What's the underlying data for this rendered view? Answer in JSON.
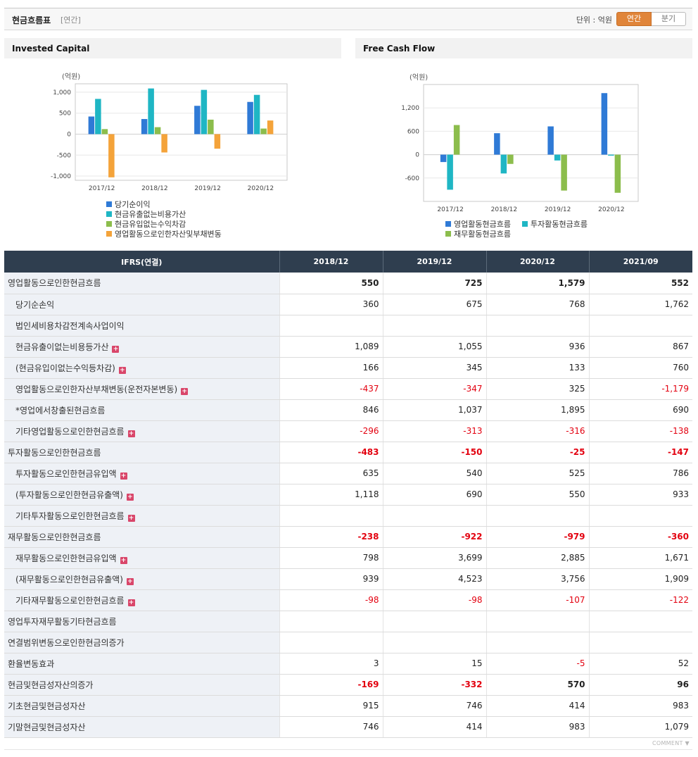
{
  "header": {
    "title": "현금흐름표",
    "subtitle": "[연간]",
    "unit_label": "단위 : 억원",
    "toggle_annual": "연간",
    "toggle_quarter": "분기"
  },
  "panels": {
    "left_title": "Invested Capital",
    "right_title": "Free Cash Flow"
  },
  "colors": {
    "blue": "#2f7ad6",
    "teal": "#1fb6c4",
    "green": "#8cbd4c",
    "orange": "#f4a33a",
    "negative": "#e3000f",
    "header_bg": "#2f3e4f"
  },
  "chart_data": [
    {
      "type": "bar",
      "title": "Invested Capital",
      "ylabel": "(억원)",
      "categories": [
        "2017/12",
        "2018/12",
        "2019/12",
        "2020/12"
      ],
      "ylim": [
        -1100,
        1200
      ],
      "yticks": [
        1000,
        500,
        0,
        -500,
        -1000
      ],
      "ytick_labels": [
        "1,000",
        "500",
        "0",
        "-500",
        "-1,000"
      ],
      "grid": true,
      "legend_position": "bottom",
      "series": [
        {
          "name": "당기순이익",
          "color": "#2f7ad6",
          "values": [
            420,
            360,
            675,
            768
          ]
        },
        {
          "name": "현금유출없는비용가산",
          "color": "#1fb6c4",
          "values": [
            840,
            1089,
            1055,
            936
          ]
        },
        {
          "name": "현금유입없는수익차감",
          "color": "#8cbd4c",
          "values": [
            120,
            166,
            345,
            133
          ]
        },
        {
          "name": "영업활동으로인한자산및부채변동",
          "color": "#f4a33a",
          "values": [
            -1030,
            -437,
            -347,
            325
          ]
        }
      ]
    },
    {
      "type": "bar",
      "title": "Free Cash Flow",
      "ylabel": "(억원)",
      "categories": [
        "2017/12",
        "2018/12",
        "2019/12",
        "2020/12"
      ],
      "ylim": [
        -1200,
        1800
      ],
      "yticks": [
        1200,
        600,
        0,
        -600
      ],
      "ytick_labels": [
        "1,200",
        "600",
        "0",
        "-600"
      ],
      "grid": true,
      "legend_position": "bottom",
      "series": [
        {
          "name": "영업활동현금흐름",
          "color": "#2f7ad6",
          "values": [
            -190,
            550,
            725,
            1579
          ]
        },
        {
          "name": "투자활동현금흐름",
          "color": "#1fb6c4",
          "values": [
            -900,
            -483,
            -150,
            -25
          ]
        },
        {
          "name": "재무활동현금흐름",
          "color": "#8cbd4c",
          "values": [
            760,
            -238,
            -922,
            -979
          ]
        }
      ]
    }
  ],
  "table": {
    "header_label": "IFRS(연결)",
    "columns": [
      "2018/12",
      "2019/12",
      "2020/12",
      "2021/09"
    ],
    "rows": [
      {
        "label": "영업활동으로인한현금흐름",
        "level": 0,
        "bold": true,
        "plus": false,
        "values": [
          "550",
          "725",
          "1,579",
          "552"
        ]
      },
      {
        "label": "당기순손익",
        "level": 1,
        "bold": false,
        "plus": false,
        "values": [
          "360",
          "675",
          "768",
          "1,762"
        ]
      },
      {
        "label": "법인세비용차감전계속사업이익",
        "level": 1,
        "bold": false,
        "plus": false,
        "values": [
          "",
          "",
          "",
          ""
        ]
      },
      {
        "label": "현금유출이없는비용등가산",
        "level": 1,
        "bold": false,
        "plus": true,
        "values": [
          "1,089",
          "1,055",
          "936",
          "867"
        ]
      },
      {
        "label": "(현금유입이없는수익등차감)",
        "level": 1,
        "bold": false,
        "plus": true,
        "values": [
          "166",
          "345",
          "133",
          "760"
        ]
      },
      {
        "label": "영업활동으로인한자산부채변동(운전자본변동)",
        "level": 1,
        "bold": false,
        "plus": true,
        "values": [
          "-437",
          "-347",
          "325",
          "-1,179"
        ]
      },
      {
        "label": "*영업에서창출된현금흐름",
        "level": 1,
        "bold": false,
        "plus": false,
        "values": [
          "846",
          "1,037",
          "1,895",
          "690"
        ]
      },
      {
        "label": "기타영업활동으로인한현금흐름",
        "level": 1,
        "bold": false,
        "plus": true,
        "values": [
          "-296",
          "-313",
          "-316",
          "-138"
        ]
      },
      {
        "label": "투자활동으로인한현금흐름",
        "level": 0,
        "bold": true,
        "plus": false,
        "values": [
          "-483",
          "-150",
          "-25",
          "-147"
        ]
      },
      {
        "label": "투자활동으로인한현금유입액",
        "level": 1,
        "bold": false,
        "plus": true,
        "values": [
          "635",
          "540",
          "525",
          "786"
        ]
      },
      {
        "label": "(투자활동으로인한현금유출액)",
        "level": 1,
        "bold": false,
        "plus": true,
        "values": [
          "1,118",
          "690",
          "550",
          "933"
        ]
      },
      {
        "label": "기타투자활동으로인한현금흐름",
        "level": 1,
        "bold": false,
        "plus": true,
        "values": [
          "",
          "",
          "",
          ""
        ]
      },
      {
        "label": "재무활동으로인한현금흐름",
        "level": 0,
        "bold": true,
        "plus": false,
        "values": [
          "-238",
          "-922",
          "-979",
          "-360"
        ]
      },
      {
        "label": "재무활동으로인한현금유입액",
        "level": 1,
        "bold": false,
        "plus": true,
        "values": [
          "798",
          "3,699",
          "2,885",
          "1,671"
        ]
      },
      {
        "label": "(재무활동으로인한현금유출액)",
        "level": 1,
        "bold": false,
        "plus": true,
        "values": [
          "939",
          "4,523",
          "3,756",
          "1,909"
        ]
      },
      {
        "label": "기타재무활동으로인한현금흐름",
        "level": 1,
        "bold": false,
        "plus": true,
        "values": [
          "-98",
          "-98",
          "-107",
          "-122"
        ]
      },
      {
        "label": "영업투자재무활동기타현금흐름",
        "level": 0,
        "bold": false,
        "plus": false,
        "values": [
          "",
          "",
          "",
          ""
        ]
      },
      {
        "label": "연결범위변동으로인한현금의증가",
        "level": 0,
        "bold": false,
        "plus": false,
        "values": [
          "",
          "",
          "",
          ""
        ]
      },
      {
        "label": "환율변동효과",
        "level": 0,
        "bold": false,
        "plus": false,
        "values": [
          "3",
          "15",
          "-5",
          "52"
        ]
      },
      {
        "label": "현금및현금성자산의증가",
        "level": 0,
        "bold": true,
        "plus": false,
        "values": [
          "-169",
          "-332",
          "570",
          "96"
        ]
      },
      {
        "label": "기초현금및현금성자산",
        "level": 0,
        "bold": false,
        "plus": false,
        "values": [
          "915",
          "746",
          "414",
          "983"
        ]
      },
      {
        "label": "기말현금및현금성자산",
        "level": 0,
        "bold": false,
        "plus": false,
        "values": [
          "746",
          "414",
          "983",
          "1,079"
        ]
      }
    ]
  },
  "footer": {
    "comment_label": "COMMENT ▼"
  }
}
